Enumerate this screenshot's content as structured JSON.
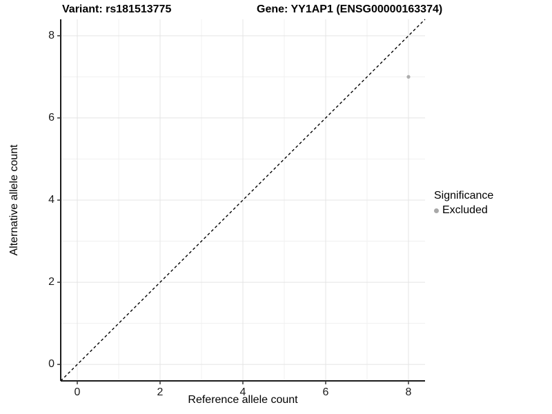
{
  "titles": {
    "left": "Variant: rs181513775",
    "right": "Gene: YY1AP1 (ENSG00000163374)"
  },
  "chart_data": {
    "type": "scatter",
    "xlabel": "Reference allele count",
    "ylabel": "Alternative allele count",
    "xlim": [
      -0.4,
      8.4
    ],
    "ylim": [
      -0.4,
      8.4
    ],
    "xticks": [
      0,
      2,
      4,
      6,
      8
    ],
    "yticks": [
      0,
      2,
      4,
      6,
      8
    ],
    "x_minor_ticks": [
      1,
      3,
      5,
      7
    ],
    "y_minor_ticks": [
      1,
      3,
      5,
      7
    ],
    "grid": "on",
    "points": [
      {
        "x": 8,
        "y": 7,
        "significance": "Excluded"
      }
    ],
    "reference_line": {
      "type": "identity",
      "from": [
        -0.4,
        -0.4
      ],
      "to": [
        8.4,
        8.4
      ],
      "style": "dashed",
      "color": "#000000"
    },
    "legend": {
      "title": "Significance",
      "position": "right",
      "items": [
        {
          "label": "Excluded",
          "color": "#a8a8a8"
        }
      ]
    },
    "colors": {
      "point": "#adadad",
      "grid_major": "#e4e4e4",
      "grid_minor": "#f0f0f0",
      "axis_line": "#1a1a1a",
      "tick_mark": "#333333",
      "background": "#ffffff"
    }
  }
}
